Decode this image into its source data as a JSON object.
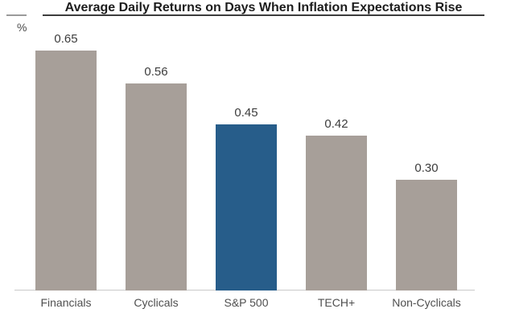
{
  "header": {
    "title": "Average Daily Returns on Days When Inflation Expectations Rise",
    "unit_label": "%"
  },
  "colors": {
    "bar_default": "#a79f99",
    "bar_highlight": "#275d8a",
    "axis_line": "#c9c9c9",
    "title_underline": "#3c3c3c",
    "value_label_text": "#3c3c3c",
    "category_label_text": "#4f4f4f"
  },
  "chart_data": {
    "type": "bar",
    "title": "Average Daily Returns on Days When Inflation Expectations Rise",
    "xlabel": "",
    "ylabel": "%",
    "categories": [
      "Financials",
      "Cyclicals",
      "S&P 500",
      "TECH+",
      "Non-Cyclicals"
    ],
    "values": [
      0.65,
      0.56,
      0.45,
      0.42,
      0.3
    ],
    "value_labels": [
      "0.65",
      "0.56",
      "0.45",
      "0.42",
      "0.30"
    ],
    "highlight_index": 2,
    "highlighted_category": "S&P 500",
    "ylim": [
      0,
      0.7
    ],
    "grid": false,
    "legend": "none",
    "data_labels": true
  }
}
